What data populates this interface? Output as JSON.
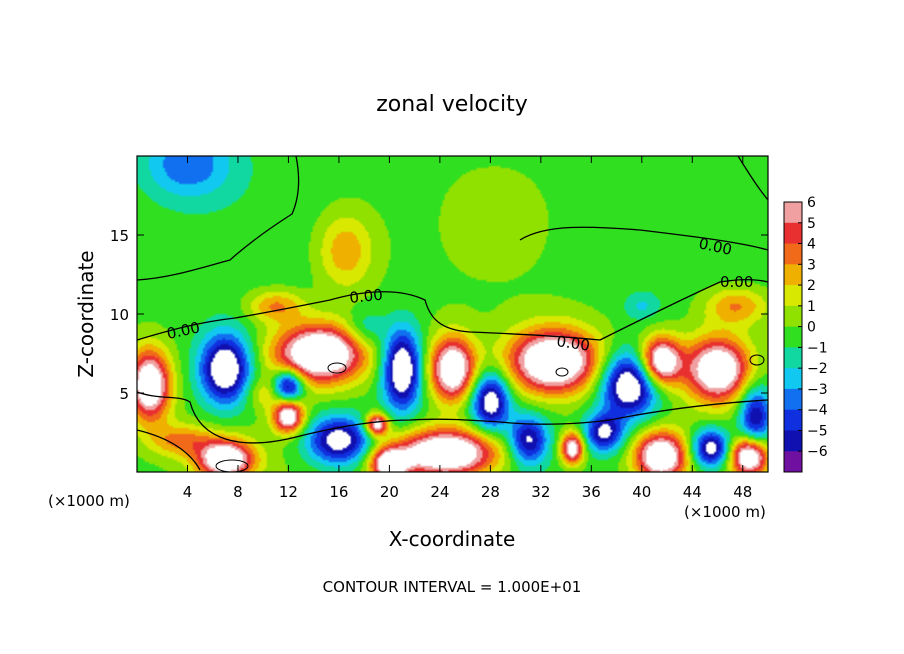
{
  "chart_data": {
    "type": "heatmap",
    "title": "zonal velocity",
    "xlabel": "X-coordinate",
    "ylabel": "Z-coordinate",
    "x_units": "(×1000 m)",
    "x_units_right": "(×1000 m)",
    "xlim": [
      0,
      50
    ],
    "ylim": [
      0,
      20
    ],
    "x_ticks": [
      4,
      8,
      12,
      16,
      20,
      24,
      28,
      32,
      36,
      40,
      44,
      48
    ],
    "y_ticks": [
      5,
      10,
      15
    ],
    "colorbar": {
      "min": -6,
      "max": 6,
      "tick_labels": [
        "6",
        "5",
        "4",
        "3",
        "2",
        "1",
        "0",
        "−1",
        "−2",
        "−3",
        "−4",
        "−5",
        "−6"
      ],
      "levels": [
        {
          "from": 5,
          "to": 6,
          "color": "#f0a0a0"
        },
        {
          "from": 4,
          "to": 5,
          "color": "#e83030"
        },
        {
          "from": 3,
          "to": 4,
          "color": "#f06a1a"
        },
        {
          "from": 2,
          "to": 3,
          "color": "#f0b000"
        },
        {
          "from": 1,
          "to": 2,
          "color": "#d8e800"
        },
        {
          "from": 0,
          "to": 1,
          "color": "#90e000"
        },
        {
          "from": -1,
          "to": 0,
          "color": "#30e020"
        },
        {
          "from": -2,
          "to": -1,
          "color": "#10d8a0"
        },
        {
          "from": -3,
          "to": -2,
          "color": "#10c8f0"
        },
        {
          "from": -4,
          "to": -3,
          "color": "#1070f0"
        },
        {
          "from": -5,
          "to": -4,
          "color": "#1030e0"
        },
        {
          "from": -6,
          "to": -5,
          "color": "#1010b0"
        },
        {
          "from": -7,
          "to": -6,
          "color": "#7010a0"
        }
      ]
    },
    "contour_labels": [
      "0.00",
      "0.00",
      "0.00",
      "0.00",
      "0.00"
    ],
    "note": "CONTOUR INTERVAL = 1.000E+01",
    "blobs": [
      {
        "x": 4,
        "z": 19.5,
        "v": -3.5,
        "rx": 3.5,
        "rz": 2.2
      },
      {
        "x": 16.5,
        "z": 14,
        "v": 3.2,
        "rx": 2.2,
        "rz": 2.4
      },
      {
        "x": 11,
        "z": 10.5,
        "v": 3.5,
        "rx": 2.2,
        "rz": 1.0
      },
      {
        "x": 47.5,
        "z": 10.5,
        "v": 3.5,
        "rx": 2.5,
        "rz": 1.2
      },
      {
        "x": 18,
        "z": 9,
        "v": -2.2,
        "rx": 1.5,
        "rz": 1.2
      },
      {
        "x": 40,
        "z": 10.5,
        "v": -1.8,
        "rx": 1.4,
        "rz": 0.9
      },
      {
        "x": 1,
        "z": 5.5,
        "v": 9,
        "rx": 1.6,
        "rz": 2.2
      },
      {
        "x": 7,
        "z": 6.5,
        "v": -8,
        "rx": 2.0,
        "rz": 2.2
      },
      {
        "x": 12,
        "z": 5.5,
        "v": -7,
        "rx": 1.2,
        "rz": 1.0
      },
      {
        "x": 14.5,
        "z": 7.5,
        "v": 10,
        "rx": 3.5,
        "rz": 1.8
      },
      {
        "x": 21,
        "z": 6.5,
        "v": -8,
        "rx": 1.5,
        "rz": 2.5
      },
      {
        "x": 25,
        "z": 6.5,
        "v": 9,
        "rx": 1.8,
        "rz": 2.0
      },
      {
        "x": 28,
        "z": 4.5,
        "v": -7,
        "rx": 1.5,
        "rz": 1.8
      },
      {
        "x": 33,
        "z": 7,
        "v": 10,
        "rx": 3.5,
        "rz": 2.0
      },
      {
        "x": 39,
        "z": 5.5,
        "v": -8,
        "rx": 2.2,
        "rz": 2.0
      },
      {
        "x": 41.5,
        "z": 7,
        "v": 9,
        "rx": 1.6,
        "rz": 1.5
      },
      {
        "x": 46,
        "z": 6.5,
        "v": 9,
        "rx": 2.5,
        "rz": 2.0
      },
      {
        "x": 49,
        "z": 3.5,
        "v": -6,
        "rx": 1.3,
        "rz": 2.0
      },
      {
        "x": 3.5,
        "z": 2.0,
        "v": 3.5,
        "rx": 2.5,
        "rz": 1.0
      },
      {
        "x": 7,
        "z": 0.8,
        "v": 9,
        "rx": 2.2,
        "rz": 1.2
      },
      {
        "x": 12,
        "z": 3.5,
        "v": 8,
        "rx": 1.2,
        "rz": 1.0
      },
      {
        "x": 16,
        "z": 2.0,
        "v": -7,
        "rx": 2.5,
        "rz": 1.5
      },
      {
        "x": 19,
        "z": 3.0,
        "v": 8,
        "rx": 0.9,
        "rz": 0.7
      },
      {
        "x": 24.5,
        "z": 1.2,
        "v": 10,
        "rx": 4.0,
        "rz": 1.5
      },
      {
        "x": 31,
        "z": 2.0,
        "v": -6,
        "rx": 1.5,
        "rz": 1.5
      },
      {
        "x": 34.5,
        "z": 1.5,
        "v": 8,
        "rx": 0.9,
        "rz": 1.0
      },
      {
        "x": 37,
        "z": 2.5,
        "v": -6,
        "rx": 1.5,
        "rz": 1.2
      },
      {
        "x": 41.5,
        "z": 1.0,
        "v": 9,
        "rx": 2.0,
        "rz": 1.5
      },
      {
        "x": 45.5,
        "z": 1.5,
        "v": -7,
        "rx": 1.5,
        "rz": 1.2
      },
      {
        "x": 48.5,
        "z": 1.0,
        "v": 9,
        "rx": 1.5,
        "rz": 1.2
      },
      {
        "x": 20,
        "z": 0.5,
        "v": 8,
        "rx": 1.5,
        "rz": 1.0
      },
      {
        "x": 10,
        "z": 5.0,
        "v": 2,
        "rx": 1.5,
        "rz": 1.0
      }
    ]
  }
}
